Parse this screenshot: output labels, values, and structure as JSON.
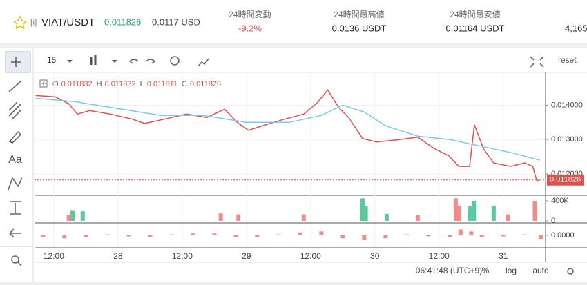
{
  "header": {
    "info": "[i]",
    "pair": "VIAT/USDT",
    "price": "0.011826",
    "usd": "0.0117 USD",
    "stats": [
      {
        "title": "24時間変動",
        "value": "-9.2%"
      },
      {
        "title": "24時間最高値",
        "value": "0.0136 USDT"
      },
      {
        "title": "24時間最安値",
        "value": "0.01164 USDT"
      },
      {
        "title": "",
        "value": "4,165,"
      }
    ]
  },
  "toolbar": {
    "interval": "15",
    "reset": "reset",
    "text_tool": "Aa"
  },
  "footer": {
    "time": "06:41:48 (UTC+9)",
    "percent": "%",
    "log": "log",
    "auto": "auto"
  },
  "chart_data": [
    {
      "type": "line",
      "ohlc": [
        {
          "label": "O",
          "value": 0.011832
        },
        {
          "label": "H",
          "value": 0.011832
        },
        {
          "label": "L",
          "value": 0.011811
        },
        {
          "label": "C",
          "value": 0.011826
        }
      ],
      "last_price": 0.011826,
      "xlim": [
        8.4,
        103.9
      ],
      "xticks": [
        {
          "value": 12,
          "label": "12:00"
        },
        {
          "value": 24,
          "label": "28"
        },
        {
          "value": 36,
          "label": "12:00"
        },
        {
          "value": 48,
          "label": "29"
        },
        {
          "value": 60,
          "label": "12:00"
        },
        {
          "value": 72,
          "label": "30"
        },
        {
          "value": 84,
          "label": "12:00"
        },
        {
          "value": 96,
          "label": "31"
        }
      ],
      "ylim": [
        0.0114,
        0.01495
      ],
      "yticks": [
        {
          "value": 0.014,
          "label": "0.014000"
        },
        {
          "value": 0.013,
          "label": "0.013000"
        },
        {
          "value": 0.012,
          "label": "0.012000"
        }
      ],
      "grid": true,
      "series": [
        {
          "color": "#d9534f",
          "x": [
            8.6,
            12.3,
            14.8,
            16.4,
            18.7,
            22.6,
            26.5,
            29,
            32.9,
            36.8,
            40.6,
            43.9,
            46.5,
            48.4,
            51.6,
            54.8,
            58.7,
            61.3,
            63.2,
            65.2,
            67.1,
            69.7,
            72.3,
            76.1,
            80,
            83.2,
            85.8,
            87.7,
            89.7,
            90.6,
            92.3,
            94.2,
            97.4,
            100,
            101.5,
            102.3,
            102.8
          ],
          "values": [
            0.01428,
            0.01424,
            0.01404,
            0.01374,
            0.01384,
            0.01374,
            0.0136,
            0.01347,
            0.0136,
            0.01374,
            0.01364,
            0.01388,
            0.01347,
            0.01327,
            0.01343,
            0.01358,
            0.01374,
            0.01408,
            0.01444,
            0.01394,
            0.01364,
            0.01303,
            0.01293,
            0.01299,
            0.01307,
            0.01273,
            0.01253,
            0.01222,
            0.01222,
            0.01343,
            0.01273,
            0.01232,
            0.01222,
            0.01232,
            0.01222,
            0.01178,
            0.011826
          ]
        },
        {
          "color": "#7ec8e3",
          "x": [
            8.6,
            16,
            24,
            32,
            40,
            48,
            56,
            62,
            66,
            70,
            74,
            80,
            86,
            92,
            98,
            102.8
          ],
          "values": [
            0.0142,
            0.0141,
            0.0139,
            0.0137,
            0.0137,
            0.0135,
            0.0135,
            0.0137,
            0.014,
            0.0138,
            0.0134,
            0.0131,
            0.013,
            0.0128,
            0.0126,
            0.0124
          ]
        }
      ]
    },
    {
      "type": "bar",
      "xlim": [
        8.4,
        103.9
      ],
      "ylim": [
        -27600,
        496500
      ],
      "yticks": [
        {
          "value": 400000,
          "label": "400K"
        },
        0
      ],
      "series": [
        {
          "color": "#5cc8a0",
          "x": [
            15.5,
            17.4,
            69.7,
            70.3,
            74.2,
            89.7,
            90.5,
            94.2
          ],
          "values": [
            200000,
            190000,
            450000,
            300000,
            140000,
            300000,
            400000,
            300000
          ]
        },
        {
          "color": "#f08c8c",
          "x": [
            14.8,
            43.2,
            46.5,
            58.7,
            80,
            87.1,
            87.7,
            96.8,
            101.9
          ],
          "values": [
            120000,
            150000,
            130000,
            130000,
            110000,
            450000,
            300000,
            130000,
            400000
          ]
        }
      ]
    },
    {
      "type": "bar",
      "xlim": [
        8.4,
        103.9
      ],
      "ylim": [
        -0.00012,
        0.00012
      ],
      "yticks": [
        {
          "value": 0,
          "label": "0.0000"
        }
      ],
      "series": [
        {
          "color": "#f08c8c",
          "x": [
            10,
            14,
            18,
            22,
            26,
            30,
            34,
            38,
            42,
            46,
            50,
            54,
            58,
            62,
            66,
            70,
            74,
            78,
            82,
            86,
            88,
            90,
            92,
            96,
            100,
            103
          ],
          "values": [
            -2e-05,
            -3e-05,
            -2e-05,
            1e-05,
            -1e-05,
            -2e-05,
            1e-05,
            2e-05,
            2e-05,
            -2e-05,
            -2e-05,
            1e-05,
            3e-05,
            4e-05,
            -3e-05,
            -5e-05,
            -3e-05,
            1e-05,
            -1e-05,
            -2e-05,
            6e-05,
            4e-05,
            -2e-05,
            -1e-05,
            1e-05,
            -4e-05
          ]
        }
      ]
    }
  ]
}
